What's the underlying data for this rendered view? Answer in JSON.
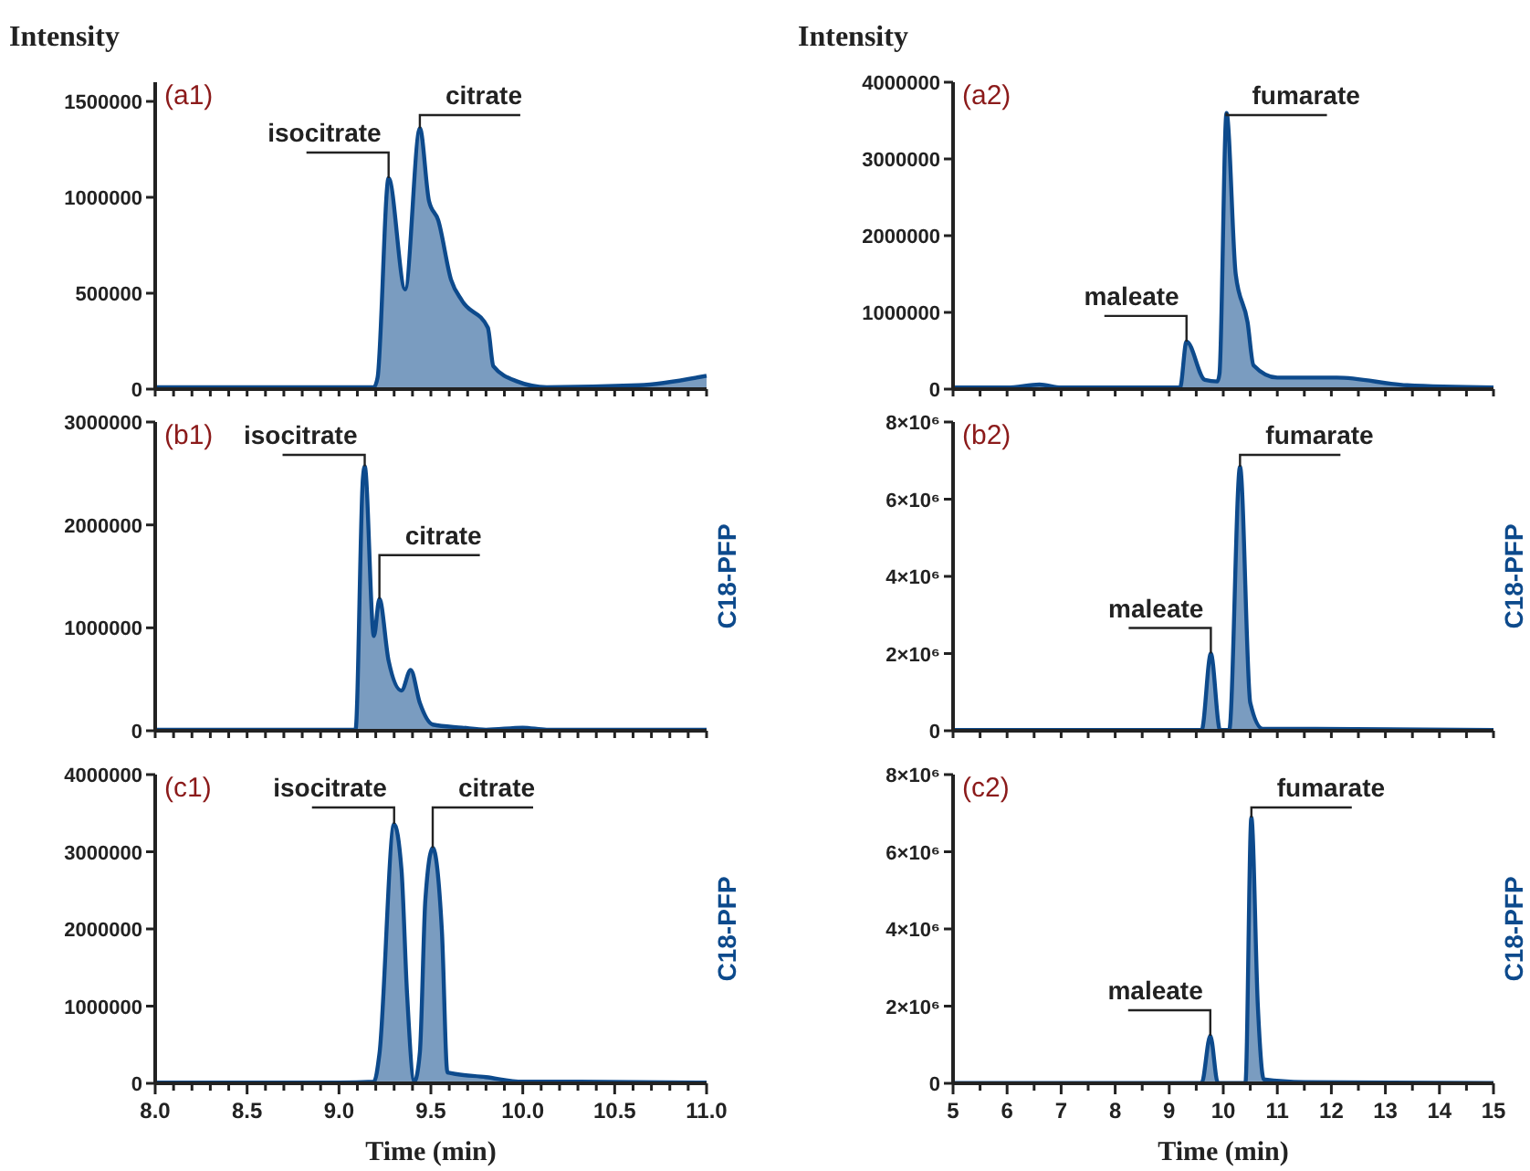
{
  "chart_data": [
    {
      "type": "area",
      "ylabel": "Intensity",
      "annotations": [
        "(a1)",
        {
          "text": "isocitrate",
          "x": 9.27,
          "y": 1100000
        },
        {
          "text": "citrate",
          "x": 9.44,
          "y": 1360000
        }
      ],
      "series": [
        {
          "color": "#0d4a8c",
          "x": [
            8.0,
            8.5,
            9.0,
            9.19,
            9.21,
            9.27,
            9.36,
            9.44,
            9.49,
            9.54,
            9.61,
            9.67,
            9.81,
            9.84,
            9.97,
            10.13,
            10.63,
            11.0
          ],
          "values": [
            10000,
            10000,
            10000,
            10000,
            60000,
            1100000,
            520000,
            1360000,
            980000,
            880000,
            570000,
            460000,
            320000,
            120000,
            40000,
            10000,
            20000,
            70000
          ]
        }
      ],
      "xlim": [
        8,
        11
      ],
      "xticks": [
        {
          "value": 8,
          "label": null
        },
        {
          "value": 8.1,
          "label": null
        },
        {
          "value": 8.2,
          "label": null
        },
        {
          "value": 8.3,
          "label": null
        },
        {
          "value": 8.4,
          "label": null
        },
        {
          "value": 8.5,
          "label": null
        },
        {
          "value": 8.6,
          "label": null
        },
        {
          "value": 8.7,
          "label": null
        },
        {
          "value": 8.8,
          "label": null
        },
        {
          "value": 8.9,
          "label": null
        },
        {
          "value": 9,
          "label": null
        },
        {
          "value": 9.1,
          "label": null
        },
        {
          "value": 9.2,
          "label": null
        },
        {
          "value": 9.3,
          "label": null
        },
        {
          "value": 9.4,
          "label": null
        },
        {
          "value": 9.5,
          "label": null
        },
        {
          "value": 9.6,
          "label": null
        },
        {
          "value": 9.7,
          "label": null
        },
        {
          "value": 9.8,
          "label": null
        },
        {
          "value": 9.9,
          "label": null
        },
        {
          "value": 10,
          "label": null
        },
        {
          "value": 10.1,
          "label": null
        },
        {
          "value": 10.2,
          "label": null
        },
        {
          "value": 10.3,
          "label": null
        },
        {
          "value": 10.4,
          "label": null
        },
        {
          "value": 10.5,
          "label": null
        },
        {
          "value": 10.6,
          "label": null
        },
        {
          "value": 10.7,
          "label": null
        },
        {
          "value": 10.8,
          "label": null
        },
        {
          "value": 10.9,
          "label": null
        },
        {
          "value": 11,
          "label": null
        }
      ],
      "ylim": [
        0,
        1600000
      ],
      "yticks": [
        0,
        500000,
        1000000,
        1500000
      ],
      "tick_labels": "y"
    },
    {
      "type": "area",
      "ylabel": "Intensity",
      "annotations": [
        "(a2)",
        {
          "text": "maleate",
          "x": 9.32,
          "y": 620000
        },
        {
          "text": "fumarate",
          "x": 10.06,
          "y": 3600000
        }
      ],
      "series": [
        {
          "color": "#0d4a8c",
          "x": [
            5,
            6.0,
            6.6,
            7.0,
            9.2,
            9.32,
            9.66,
            9.89,
            9.93,
            10.06,
            10.23,
            10.45,
            10.56,
            11.0,
            12.1,
            13.4,
            15
          ],
          "values": [
            20000,
            20000,
            60000,
            20000,
            20000,
            620000,
            120000,
            100000,
            200000,
            3600000,
            1500000,
            870000,
            310000,
            150000,
            150000,
            50000,
            20000
          ]
        }
      ],
      "xlim": [
        5,
        15
      ],
      "xticks": [
        {
          "value": 5,
          "label": null
        },
        {
          "value": 5.5,
          "label": null
        },
        {
          "value": 6,
          "label": null
        },
        {
          "value": 6.5,
          "label": null
        },
        {
          "value": 7,
          "label": null
        },
        {
          "value": 7.5,
          "label": null
        },
        {
          "value": 8,
          "label": null
        },
        {
          "value": 8.5,
          "label": null
        },
        {
          "value": 9,
          "label": null
        },
        {
          "value": 9.5,
          "label": null
        },
        {
          "value": 10,
          "label": null
        },
        {
          "value": 10.5,
          "label": null
        },
        {
          "value": 11,
          "label": null
        },
        {
          "value": 11.5,
          "label": null
        },
        {
          "value": 12,
          "label": null
        },
        {
          "value": 12.5,
          "label": null
        },
        {
          "value": 13,
          "label": null
        },
        {
          "value": 13.5,
          "label": null
        },
        {
          "value": 14,
          "label": null
        },
        {
          "value": 14.5,
          "label": null
        },
        {
          "value": 15,
          "label": null
        }
      ],
      "ylim": [
        0,
        4000000
      ],
      "yticks": [
        0,
        1000000,
        2000000,
        3000000,
        4000000
      ],
      "tick_labels": "y"
    },
    {
      "type": "area",
      "subtitle": "C18-PFP",
      "annotations": [
        "(b1)",
        {
          "text": "isocitrate",
          "x": 9.14,
          "y": 2570000
        },
        {
          "text": "citrate",
          "x": 9.22,
          "y": 1280000
        }
      ],
      "series": [
        {
          "color": "#0d4a8c",
          "x": [
            8.0,
            8.5,
            9.0,
            9.09,
            9.13,
            9.14,
            9.19,
            9.22,
            9.27,
            9.34,
            9.39,
            9.44,
            9.51,
            9.67,
            9.8,
            10.0,
            10.13,
            11.0
          ],
          "values": [
            10000,
            10000,
            10000,
            10000,
            2450000,
            2570000,
            920000,
            1280000,
            680000,
            390000,
            590000,
            270000,
            60000,
            30000,
            10000,
            30000,
            10000,
            10000
          ]
        }
      ],
      "xlim": [
        8,
        11
      ],
      "xticks": [
        {
          "value": 8,
          "label": null
        },
        {
          "value": 8.1,
          "label": null
        },
        {
          "value": 8.2,
          "label": null
        },
        {
          "value": 8.3,
          "label": null
        },
        {
          "value": 8.4,
          "label": null
        },
        {
          "value": 8.5,
          "label": null
        },
        {
          "value": 8.6,
          "label": null
        },
        {
          "value": 8.7,
          "label": null
        },
        {
          "value": 8.8,
          "label": null
        },
        {
          "value": 8.9,
          "label": null
        },
        {
          "value": 9,
          "label": null
        },
        {
          "value": 9.1,
          "label": null
        },
        {
          "value": 9.2,
          "label": null
        },
        {
          "value": 9.3,
          "label": null
        },
        {
          "value": 9.4,
          "label": null
        },
        {
          "value": 9.5,
          "label": null
        },
        {
          "value": 9.6,
          "label": null
        },
        {
          "value": 9.7,
          "label": null
        },
        {
          "value": 9.8,
          "label": null
        },
        {
          "value": 9.9,
          "label": null
        },
        {
          "value": 10,
          "label": null
        },
        {
          "value": 10.1,
          "label": null
        },
        {
          "value": 10.2,
          "label": null
        },
        {
          "value": 10.3,
          "label": null
        },
        {
          "value": 10.4,
          "label": null
        },
        {
          "value": 10.5,
          "label": null
        },
        {
          "value": 10.6,
          "label": null
        },
        {
          "value": 10.7,
          "label": null
        },
        {
          "value": 10.8,
          "label": null
        },
        {
          "value": 10.9,
          "label": null
        },
        {
          "value": 11,
          "label": null
        }
      ],
      "ylim": [
        0,
        3000000
      ],
      "yticks": [
        0,
        1000000,
        2000000,
        3000000
      ],
      "tick_labels": "y"
    },
    {
      "type": "area",
      "subtitle": "C18-PFP",
      "annotations": [
        "(b2)",
        {
          "text": "maleate",
          "x": 9.77,
          "y": 2000000
        },
        {
          "text": "fumarate",
          "x": 10.31,
          "y": 6840000
        }
      ],
      "series": [
        {
          "color": "#0d4a8c",
          "x": [
            5,
            9.6,
            9.77,
            9.94,
            10.11,
            10.31,
            10.5,
            10.73,
            11.0,
            15
          ],
          "values": [
            20000,
            20000,
            2000000,
            20000,
            20000,
            6840000,
            720000,
            50000,
            50000,
            20000
          ]
        }
      ],
      "xlim": [
        5,
        15
      ],
      "xticks": [
        {
          "value": 5,
          "label": null
        },
        {
          "value": 5.5,
          "label": null
        },
        {
          "value": 6,
          "label": null
        },
        {
          "value": 6.5,
          "label": null
        },
        {
          "value": 7,
          "label": null
        },
        {
          "value": 7.5,
          "label": null
        },
        {
          "value": 8,
          "label": null
        },
        {
          "value": 8.5,
          "label": null
        },
        {
          "value": 9,
          "label": null
        },
        {
          "value": 9.5,
          "label": null
        },
        {
          "value": 10,
          "label": null
        },
        {
          "value": 10.5,
          "label": null
        },
        {
          "value": 11,
          "label": null
        },
        {
          "value": 11.5,
          "label": null
        },
        {
          "value": 12,
          "label": null
        },
        {
          "value": 12.5,
          "label": null
        },
        {
          "value": 13,
          "label": null
        },
        {
          "value": 13.5,
          "label": null
        },
        {
          "value": 14,
          "label": null
        },
        {
          "value": 14.5,
          "label": null
        },
        {
          "value": 15,
          "label": null
        }
      ],
      "ylim": [
        0,
        8000000
      ],
      "yticks": [
        {
          "value": 0,
          "label": "0"
        },
        {
          "value": 2000000,
          "label": "2×10⁶"
        },
        {
          "value": 4000000,
          "label": "4×10⁶"
        },
        {
          "value": 6000000,
          "label": "6×10⁶"
        },
        {
          "value": 8000000,
          "label": "8×10⁶"
        }
      ],
      "tick_labels": "y"
    },
    {
      "type": "area",
      "subtitle": "C18-PFP",
      "xlabel": "Time (min)",
      "annotations": [
        "(c1)",
        {
          "text": "isocitrate",
          "x": 9.3,
          "y": 3360000
        },
        {
          "text": "citrate",
          "x": 9.51,
          "y": 3050000
        }
      ],
      "series": [
        {
          "color": "#0d4a8c",
          "x": [
            8.0,
            8.5,
            9.0,
            9.19,
            9.22,
            9.3,
            9.34,
            9.37,
            9.41,
            9.44,
            9.47,
            9.51,
            9.56,
            9.59,
            9.8,
            10.0,
            10.3,
            11.0
          ],
          "values": [
            10000,
            10000,
            10000,
            20000,
            380000,
            3360000,
            2770000,
            1180000,
            20000,
            400000,
            2380000,
            3050000,
            1970000,
            140000,
            80000,
            20000,
            20000,
            10000
          ]
        }
      ],
      "xlim": [
        8,
        11
      ],
      "xticks": [
        {
          "value": 8,
          "label": "8.0"
        },
        {
          "value": 8.1,
          "label": null
        },
        {
          "value": 8.2,
          "label": null
        },
        {
          "value": 8.3,
          "label": null
        },
        {
          "value": 8.4,
          "label": null
        },
        {
          "value": 8.5,
          "label": "8.5"
        },
        {
          "value": 8.6,
          "label": null
        },
        {
          "value": 8.7,
          "label": null
        },
        {
          "value": 8.8,
          "label": null
        },
        {
          "value": 8.9,
          "label": null
        },
        {
          "value": 9,
          "label": "9.0"
        },
        {
          "value": 9.1,
          "label": null
        },
        {
          "value": 9.2,
          "label": null
        },
        {
          "value": 9.3,
          "label": null
        },
        {
          "value": 9.4,
          "label": null
        },
        {
          "value": 9.5,
          "label": "9.5"
        },
        {
          "value": 9.6,
          "label": null
        },
        {
          "value": 9.7,
          "label": null
        },
        {
          "value": 9.8,
          "label": null
        },
        {
          "value": 9.9,
          "label": null
        },
        {
          "value": 10,
          "label": "10.0"
        },
        {
          "value": 10.1,
          "label": null
        },
        {
          "value": 10.2,
          "label": null
        },
        {
          "value": 10.3,
          "label": null
        },
        {
          "value": 10.4,
          "label": null
        },
        {
          "value": 10.5,
          "label": "10.5"
        },
        {
          "value": 10.6,
          "label": null
        },
        {
          "value": 10.7,
          "label": null
        },
        {
          "value": 10.8,
          "label": null
        },
        {
          "value": 10.9,
          "label": null
        },
        {
          "value": 11,
          "label": "11.0"
        }
      ],
      "ylim": [
        0,
        4000000
      ],
      "yticks": [
        0,
        1000000,
        2000000,
        3000000,
        4000000
      ]
    },
    {
      "type": "area",
      "subtitle": "C18-PFP",
      "xlabel": "Time (min)",
      "annotations": [
        "(c2)",
        {
          "text": "maleate",
          "x": 9.76,
          "y": 1230000
        },
        {
          "text": "fumarate",
          "x": 10.52,
          "y": 6890000
        }
      ],
      "series": [
        {
          "color": "#0d4a8c",
          "x": [
            5,
            9.6,
            9.76,
            9.9,
            10.41,
            10.52,
            10.64,
            10.75,
            11.5,
            15
          ],
          "values": [
            10000,
            10000,
            1230000,
            10000,
            10000,
            6890000,
            2000000,
            100000,
            30000,
            10000
          ]
        }
      ],
      "xlim": [
        5,
        15
      ],
      "xticks": [
        {
          "value": 5,
          "label": "5"
        },
        {
          "value": 5.5,
          "label": null
        },
        {
          "value": 6,
          "label": "6"
        },
        {
          "value": 6.5,
          "label": null
        },
        {
          "value": 7,
          "label": "7"
        },
        {
          "value": 7.5,
          "label": null
        },
        {
          "value": 8,
          "label": "8"
        },
        {
          "value": 8.5,
          "label": null
        },
        {
          "value": 9,
          "label": "9"
        },
        {
          "value": 9.5,
          "label": null
        },
        {
          "value": 10,
          "label": "10"
        },
        {
          "value": 10.5,
          "label": null
        },
        {
          "value": 11,
          "label": "11"
        },
        {
          "value": 11.5,
          "label": null
        },
        {
          "value": 12,
          "label": "12"
        },
        {
          "value": 12.5,
          "label": null
        },
        {
          "value": 13,
          "label": "13"
        },
        {
          "value": 13.5,
          "label": null
        },
        {
          "value": 14,
          "label": "14"
        },
        {
          "value": 14.5,
          "label": null
        },
        {
          "value": 15,
          "label": "15"
        }
      ],
      "ylim": [
        0,
        8000000
      ],
      "yticks": [
        {
          "value": 0,
          "label": "0"
        },
        {
          "value": 2000000,
          "label": "2×10⁶"
        },
        {
          "value": 4000000,
          "label": "4×10⁶"
        },
        {
          "value": 6000000,
          "label": "6×10⁶"
        },
        {
          "value": 8000000,
          "label": "8×10⁶"
        }
      ]
    }
  ]
}
